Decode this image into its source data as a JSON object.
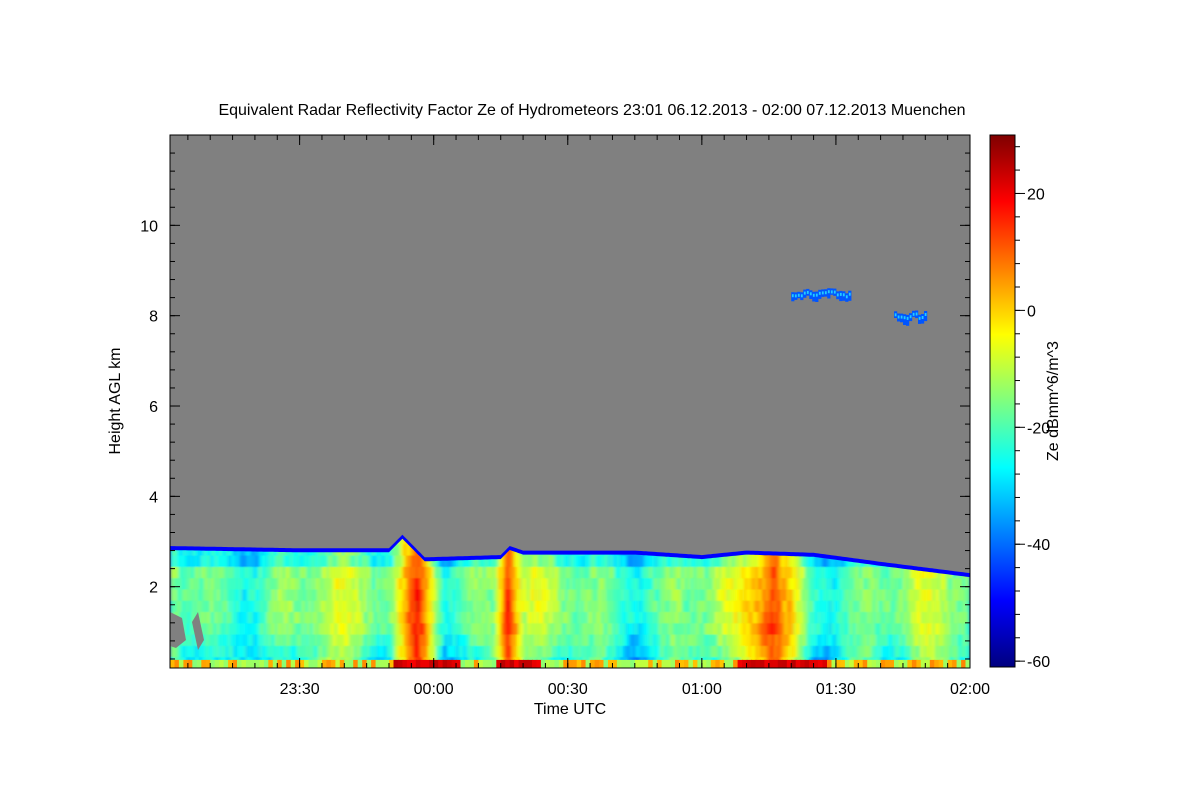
{
  "chart_data": {
    "type": "heatmap",
    "title": "Equivalent Radar Reflectivity Factor Ze of Hydrometeors   23:01 06.12.2013 - 02:00 07.12.2013 Muenchen",
    "xlabel": "Time UTC",
    "ylabel": "Height AGL km",
    "colorbar_label": "Ze dBmm^6/m^3",
    "x_range": [
      "23:01",
      "02:00"
    ],
    "x_ticks": [
      "23:30",
      "00:00",
      "00:30",
      "01:00",
      "01:30",
      "02:00"
    ],
    "ylim": [
      0.2,
      12
    ],
    "y_ticks": [
      "2",
      "4",
      "6",
      "8",
      "10"
    ],
    "clim": [
      -61,
      30
    ],
    "colorbar_ticks": [
      "20",
      "0",
      "-20",
      "-40",
      "-60"
    ],
    "colormap": "jet",
    "no_signal_color": "#808080",
    "cloud_top_km": [
      {
        "time": "23:01",
        "top": 2.9
      },
      {
        "time": "23:30",
        "top": 2.85
      },
      {
        "time": "23:50",
        "top": 2.85
      },
      {
        "time": "23:53",
        "top": 3.15
      },
      {
        "time": "23:58",
        "top": 2.65
      },
      {
        "time": "00:15",
        "top": 2.7
      },
      {
        "time": "00:17",
        "top": 2.9
      },
      {
        "time": "00:20",
        "top": 2.8
      },
      {
        "time": "00:45",
        "top": 2.8
      },
      {
        "time": "01:00",
        "top": 2.7
      },
      {
        "time": "01:10",
        "top": 2.8
      },
      {
        "time": "01:25",
        "top": 2.75
      },
      {
        "time": "01:40",
        "top": 2.55
      },
      {
        "time": "02:00",
        "top": 2.3
      }
    ],
    "strong_echo_columns": [
      {
        "start": "23:52",
        "end": "00:00",
        "peak_dbz": 20
      },
      {
        "start": "00:15",
        "end": "00:18",
        "peak_dbz": 18
      },
      {
        "start": "01:09",
        "end": "01:22",
        "peak_dbz": 15
      }
    ],
    "upper_echo_patches": [
      {
        "start": "01:20",
        "end": "01:33",
        "height_km": 8.45,
        "dbz": -30
      },
      {
        "start": "01:43",
        "end": "01:50",
        "height_km": 7.95,
        "dbz": -30
      }
    ]
  }
}
